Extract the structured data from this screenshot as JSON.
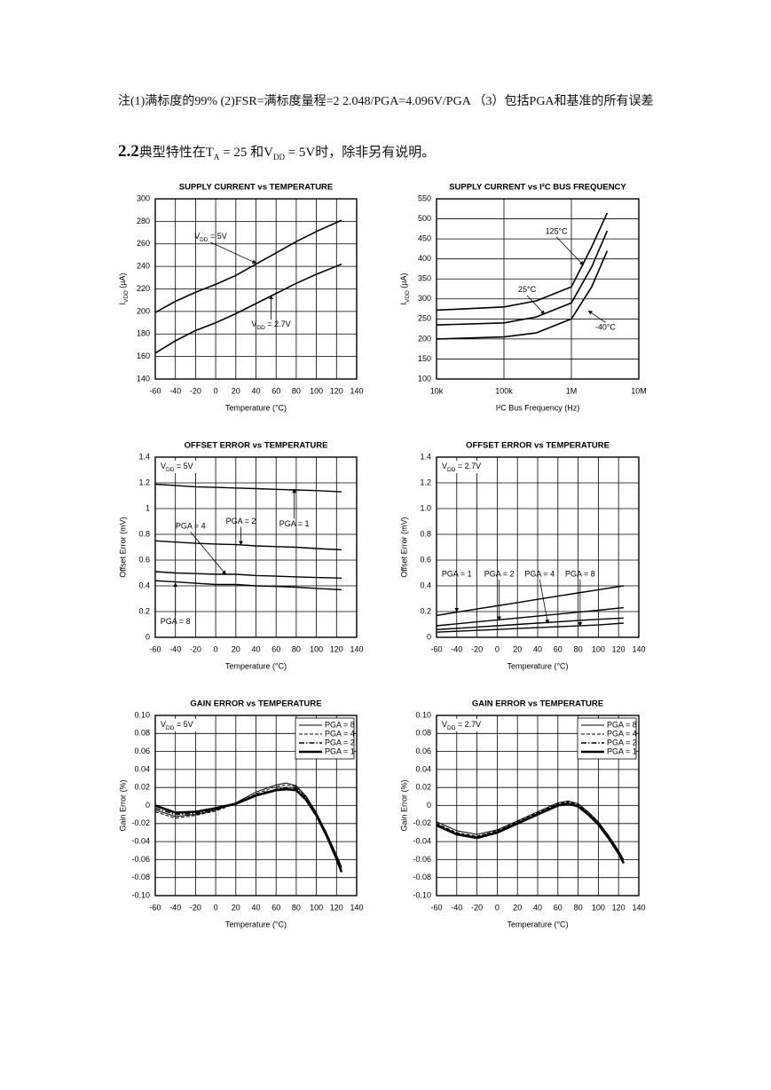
{
  "note": "注(1)满标度的99% (2)FSR=满标度量程=2 2.048/PGA=4.096V/PGA （3）包括PGA和基准的所有误差",
  "heading": [
    "2.2",
    "典型特性在T",
    "A",
    " = 25  和V",
    "DD",
    " = 5V时，除非另有说明。"
  ],
  "chart_data": [
    {
      "type": "line",
      "title": "SUPPLY CURRENT vs TEMPERATURE",
      "xlabel": "Temperature (°C)",
      "ylabel": [
        "I",
        "VDD",
        " (µA)"
      ],
      "x": [
        -60,
        -40,
        -20,
        0,
        20,
        40,
        60,
        80,
        100,
        125
      ],
      "xlim": [
        -60,
        140
      ],
      "xticks": [
        -60,
        -40,
        -20,
        0,
        20,
        40,
        60,
        80,
        100,
        120,
        140
      ],
      "ylim": [
        140,
        300
      ],
      "yticks": [
        140,
        160,
        180,
        200,
        220,
        240,
        260,
        280,
        300
      ],
      "grid": true,
      "series_labels": true,
      "series": [
        {
          "name": [
            "V",
            "DD",
            " = 5V"
          ],
          "color": "#000",
          "style": "solid",
          "linewidth": 1.6,
          "values": [
            199,
            209,
            217,
            224,
            232,
            242,
            252,
            262,
            271,
            281
          ]
        },
        {
          "name": [
            "V",
            "DD",
            " = 2.7V"
          ],
          "color": "#000",
          "style": "solid",
          "linewidth": 1.6,
          "values": [
            163,
            174,
            183,
            190,
            198,
            207,
            216,
            225,
            233,
            242
          ]
        }
      ]
    },
    {
      "type": "line",
      "title": "SUPPLY CURRENT vs I²C BUS FREQUENCY",
      "xlabel": "I²C Bus Frequency (Hz)",
      "ylabel": [
        "I",
        "VDD",
        " (µA)"
      ],
      "x": [
        10000,
        100000,
        300000,
        1000000,
        2000000,
        3400000
      ],
      "xlog": true,
      "xlim": [
        10000,
        10000000
      ],
      "xticks": [
        {
          "value": 10000,
          "label": "10k"
        },
        {
          "value": 100000,
          "label": "100k"
        },
        {
          "value": 1000000,
          "label": "1M"
        },
        {
          "value": 10000000,
          "label": "10M"
        }
      ],
      "ylim": [
        100,
        550
      ],
      "yticks": [
        100,
        150,
        200,
        250,
        300,
        350,
        400,
        450,
        500,
        550
      ],
      "grid": true,
      "series_labels": true,
      "series": [
        {
          "name": "125°C",
          "color": "#000",
          "style": "solid",
          "linewidth": 1.6,
          "values": [
            272,
            280,
            295,
            330,
            430,
            515
          ]
        },
        {
          "name": "25°C",
          "color": "#000",
          "style": "solid",
          "linewidth": 1.6,
          "values": [
            235,
            240,
            255,
            290,
            380,
            470
          ]
        },
        {
          "name": "-40°C",
          "color": "#000",
          "style": "solid",
          "linewidth": 1.6,
          "values": [
            200,
            205,
            215,
            250,
            330,
            420
          ]
        }
      ]
    },
    {
      "type": "line",
      "title": "OFFSET ERROR vs TEMPERATURE",
      "xlabel": "Temperature (°C)",
      "ylabel": "Offset Error (mV)",
      "annotations": [
        [
          "V",
          "DD",
          " = 5V"
        ]
      ],
      "x": [
        -60,
        -40,
        -20,
        0,
        20,
        40,
        60,
        80,
        100,
        125
      ],
      "xlim": [
        -60,
        140
      ],
      "xticks": [
        -60,
        -40,
        -20,
        0,
        20,
        40,
        60,
        80,
        100,
        120,
        140
      ],
      "ylim": [
        0,
        1.4
      ],
      "yticks": [
        0,
        0.2,
        0.4,
        0.6,
        0.8,
        1,
        1.2,
        1.4
      ],
      "grid": true,
      "series_labels": true,
      "series": [
        {
          "name": "PGA = 1",
          "color": "#000",
          "style": "solid",
          "linewidth": 1.4,
          "values": [
            1.19,
            1.18,
            1.17,
            1.165,
            1.16,
            1.155,
            1.15,
            1.145,
            1.14,
            1.13
          ]
        },
        {
          "name": "PGA = 2",
          "color": "#000",
          "style": "solid",
          "linewidth": 1.4,
          "values": [
            0.75,
            0.74,
            0.73,
            0.725,
            0.72,
            0.71,
            0.705,
            0.7,
            0.69,
            0.68
          ]
        },
        {
          "name": "PGA = 4",
          "color": "#000",
          "style": "solid",
          "linewidth": 1.4,
          "values": [
            0.51,
            0.5,
            0.495,
            0.49,
            0.49,
            0.48,
            0.475,
            0.47,
            0.465,
            0.46
          ]
        },
        {
          "name": "PGA = 8",
          "color": "#000",
          "style": "solid",
          "linewidth": 1.4,
          "values": [
            0.44,
            0.43,
            0.42,
            0.41,
            0.41,
            0.4,
            0.395,
            0.39,
            0.38,
            0.37
          ]
        }
      ]
    },
    {
      "type": "line",
      "title": "OFFSET ERROR vs TEMPERATURE",
      "xlabel": "Temperature (°C)",
      "ylabel": "Offset Error (mV)",
      "annotations": [
        [
          "V",
          "DD",
          " = 2.7V"
        ]
      ],
      "x": [
        -60,
        -40,
        -20,
        0,
        20,
        40,
        60,
        80,
        100,
        125
      ],
      "xlim": [
        -60,
        140
      ],
      "xticks": [
        -60,
        -40,
        -20,
        0,
        20,
        40,
        60,
        80,
        100,
        120,
        140
      ],
      "ylim": [
        0,
        1.4
      ],
      "yticks": [
        0,
        0.2,
        0.4,
        0.6,
        0.8,
        {
          "value": 1,
          "label": "1.0"
        },
        1.2,
        1.4
      ],
      "grid": true,
      "series_labels": true,
      "series": [
        {
          "name": "PGA = 1",
          "color": "#000",
          "style": "solid",
          "linewidth": 1.4,
          "values": [
            0.17,
            0.195,
            0.22,
            0.245,
            0.27,
            0.295,
            0.32,
            0.345,
            0.37,
            0.4
          ]
        },
        {
          "name": "PGA = 2",
          "color": "#000",
          "style": "solid",
          "linewidth": 1.4,
          "values": [
            0.09,
            0.105,
            0.12,
            0.135,
            0.15,
            0.165,
            0.18,
            0.195,
            0.21,
            0.23
          ]
        },
        {
          "name": "PGA = 4",
          "color": "#000",
          "style": "solid",
          "linewidth": 1.4,
          "values": [
            0.06,
            0.07,
            0.08,
            0.09,
            0.1,
            0.11,
            0.12,
            0.13,
            0.14,
            0.15
          ]
        },
        {
          "name": "PGA = 8",
          "color": "#000",
          "style": "solid",
          "linewidth": 1.4,
          "values": [
            0.04,
            0.047,
            0.054,
            0.061,
            0.068,
            0.075,
            0.082,
            0.089,
            0.096,
            0.11
          ]
        }
      ]
    },
    {
      "type": "line",
      "title": "GAIN ERROR vs TEMPERATURE",
      "xlabel": "Temperature (°C)",
      "ylabel": "Gain Error (%)",
      "annotations": [
        [
          "V",
          "DD",
          " = 5V"
        ]
      ],
      "x": [
        -60,
        -40,
        -20,
        0,
        20,
        40,
        60,
        70,
        80,
        90,
        100,
        110,
        120,
        125
      ],
      "xlim": [
        -60,
        140
      ],
      "xticks": [
        -60,
        -40,
        -20,
        0,
        20,
        40,
        60,
        80,
        100,
        120,
        140
      ],
      "ylim": [
        -0.1,
        0.1
      ],
      "yticks": [
        {
          "value": -0.1,
          "label": "-0.10"
        },
        -0.08,
        -0.06,
        -0.04,
        -0.02,
        0,
        0.02,
        0.04,
        0.06,
        0.08,
        {
          "value": 0.1,
          "label": "0.10"
        }
      ],
      "grid": true,
      "legend": "upper right",
      "series": [
        {
          "name": "PGA = 8",
          "color": "#000",
          "style": "solid",
          "linewidth": 1,
          "values": [
            -0.005,
            -0.012,
            -0.01,
            -0.005,
            0.003,
            0.015,
            0.023,
            0.025,
            0.022,
            0.01,
            -0.008,
            -0.03,
            -0.055,
            -0.068
          ]
        },
        {
          "name": "PGA = 4",
          "color": "#000",
          "style": "dashed",
          "linewidth": 1,
          "values": [
            -0.007,
            -0.014,
            -0.011,
            -0.006,
            0.002,
            0.013,
            0.021,
            0.023,
            0.021,
            0.009,
            -0.009,
            -0.031,
            -0.057,
            -0.07
          ]
        },
        {
          "name": "PGA = 2",
          "color": "#000",
          "style": "dashdot",
          "linewidth": 1.4,
          "values": [
            -0.003,
            -0.01,
            -0.009,
            -0.004,
            0.002,
            0.012,
            0.018,
            0.02,
            0.019,
            0.008,
            -0.01,
            -0.032,
            -0.058,
            -0.072
          ]
        },
        {
          "name": "PGA = 1",
          "color": "#000",
          "style": "solid",
          "linewidth": 2.6,
          "values": [
            0,
            -0.008,
            -0.007,
            -0.003,
            0.002,
            0.011,
            0.017,
            0.018,
            0.017,
            0.006,
            -0.011,
            -0.033,
            -0.059,
            -0.074
          ]
        }
      ]
    },
    {
      "type": "line",
      "title": "GAIN ERROR vs TEMPERATURE",
      "xlabel": "Temperature (°C)",
      "ylabel": "Gain Error (%)",
      "annotations": [
        [
          "V",
          "DD",
          " = 2.7V"
        ]
      ],
      "x": [
        -60,
        -40,
        -20,
        0,
        20,
        40,
        60,
        70,
        80,
        90,
        100,
        110,
        120,
        125
      ],
      "xlim": [
        -60,
        140
      ],
      "xticks": [
        -60,
        -40,
        -20,
        0,
        20,
        40,
        60,
        80,
        100,
        120,
        140
      ],
      "ylim": [
        -0.1,
        0.1
      ],
      "yticks": [
        {
          "value": -0.1,
          "label": "-0.10"
        },
        -0.08,
        -0.06,
        -0.04,
        -0.02,
        0,
        0.02,
        0.04,
        0.06,
        0.08,
        {
          "value": 0.1,
          "label": "0.10"
        }
      ],
      "grid": true,
      "legend": "upper right",
      "series": [
        {
          "name": "PGA = 8",
          "color": "#000",
          "style": "solid",
          "linewidth": 1,
          "values": [
            -0.018,
            -0.028,
            -0.032,
            -0.027,
            -0.017,
            -0.007,
            0.003,
            0.005,
            0.002,
            -0.007,
            -0.018,
            -0.033,
            -0.05,
            -0.06
          ]
        },
        {
          "name": "PGA = 4",
          "color": "#000",
          "style": "dashed",
          "linewidth": 1,
          "values": [
            -0.02,
            -0.03,
            -0.034,
            -0.028,
            -0.018,
            -0.008,
            0.002,
            0.004,
            0.001,
            -0.008,
            -0.019,
            -0.034,
            -0.051,
            -0.061
          ]
        },
        {
          "name": "PGA = 2",
          "color": "#000",
          "style": "dashdot",
          "linewidth": 1.4,
          "values": [
            -0.021,
            -0.031,
            -0.035,
            -0.029,
            -0.019,
            -0.009,
            0.001,
            0.003,
            0,
            -0.009,
            -0.02,
            -0.035,
            -0.052,
            -0.062
          ]
        },
        {
          "name": "PGA = 1",
          "color": "#000",
          "style": "solid",
          "linewidth": 2.6,
          "values": [
            -0.022,
            -0.032,
            -0.036,
            -0.03,
            -0.02,
            -0.01,
            0,
            0.002,
            -0.001,
            -0.01,
            -0.021,
            -0.036,
            -0.053,
            -0.064
          ]
        }
      ]
    }
  ]
}
